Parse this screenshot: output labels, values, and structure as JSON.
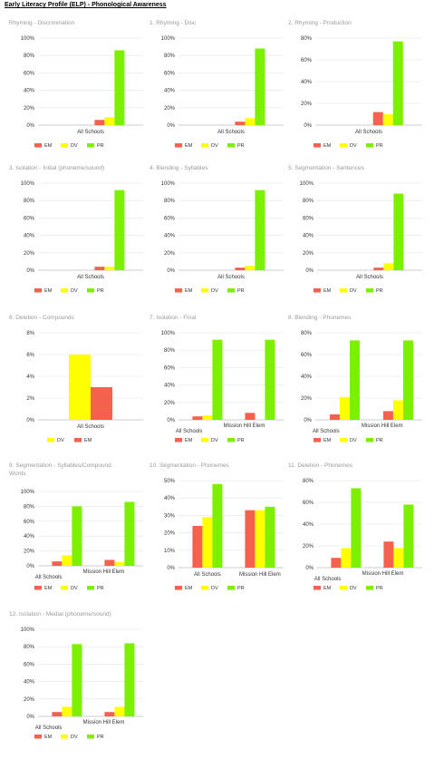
{
  "page": {
    "title": "Early Literacy Profile (ELP) - Phonological Awareness"
  },
  "colors": {
    "EM": "#f4614d",
    "DV": "#ffff00",
    "PR": "#7cf000",
    "axis": "#999999",
    "grid": "#e3e3e3",
    "title": "#9a9a9a",
    "label": "#333333"
  },
  "legend": [
    "EM",
    "DV",
    "PR"
  ],
  "chart_data": [
    {
      "type": "bar",
      "title": "Rhyming - Discrimination",
      "categories": [
        "All Schools"
      ],
      "ylim": [
        0,
        100
      ],
      "ticks": [
        0,
        20,
        40,
        60,
        80,
        100
      ],
      "tick_suffix": "%",
      "series": [
        {
          "name": "EM",
          "values": [
            6
          ]
        },
        {
          "name": "DV",
          "values": [
            9
          ]
        },
        {
          "name": "PR",
          "values": [
            86
          ]
        }
      ],
      "legend_order": [
        "EM",
        "DV",
        "PR"
      ]
    },
    {
      "type": "bar",
      "title": "1. Rhyming - Disc",
      "categories": [
        "All Schools"
      ],
      "ylim": [
        0,
        100
      ],
      "ticks": [
        0,
        20,
        40,
        60,
        80,
        100
      ],
      "tick_suffix": "%",
      "series": [
        {
          "name": "EM",
          "values": [
            4
          ]
        },
        {
          "name": "DV",
          "values": [
            8
          ]
        },
        {
          "name": "PR",
          "values": [
            88
          ]
        }
      ],
      "legend_order": [
        "EM",
        "DV",
        "PR"
      ]
    },
    {
      "type": "bar",
      "title": "2. Rhyming - Production",
      "categories": [
        "All Schools"
      ],
      "ylim": [
        0,
        80
      ],
      "ticks": [
        0,
        20,
        40,
        60,
        80
      ],
      "tick_suffix": "%",
      "series": [
        {
          "name": "EM",
          "values": [
            12
          ]
        },
        {
          "name": "DV",
          "values": [
            10
          ]
        },
        {
          "name": "PR",
          "values": [
            77
          ]
        }
      ],
      "legend_order": [
        "EM",
        "DV",
        "PR"
      ]
    },
    {
      "type": "bar",
      "title": "3. Isolation - Initial (phoneme/sound)",
      "categories": [
        "All Schools"
      ],
      "ylim": [
        0,
        100
      ],
      "ticks": [
        0,
        20,
        40,
        60,
        80,
        100
      ],
      "tick_suffix": "%",
      "series": [
        {
          "name": "EM",
          "values": [
            4
          ]
        },
        {
          "name": "DV",
          "values": [
            4
          ]
        },
        {
          "name": "PR",
          "values": [
            92
          ]
        }
      ],
      "legend_order": [
        "EM",
        "DV",
        "PR"
      ]
    },
    {
      "type": "bar",
      "title": "4. Blending - Syllables",
      "categories": [
        "All Schools"
      ],
      "ylim": [
        0,
        100
      ],
      "ticks": [
        0,
        20,
        40,
        60,
        80,
        100
      ],
      "tick_suffix": "%",
      "series": [
        {
          "name": "EM",
          "values": [
            3
          ]
        },
        {
          "name": "DV",
          "values": [
            5
          ]
        },
        {
          "name": "PR",
          "values": [
            92
          ]
        }
      ],
      "legend_order": [
        "EM",
        "DV",
        "PR"
      ]
    },
    {
      "type": "bar",
      "title": "5. Segmentation - Sentences",
      "categories": [
        "All Schools"
      ],
      "ylim": [
        0,
        100
      ],
      "ticks": [
        0,
        20,
        40,
        60,
        80,
        100
      ],
      "tick_suffix": "%",
      "series": [
        {
          "name": "EM",
          "values": [
            3
          ]
        },
        {
          "name": "DV",
          "values": [
            8
          ]
        },
        {
          "name": "PR",
          "values": [
            88
          ]
        }
      ],
      "legend_order": [
        "EM",
        "DV",
        "PR"
      ]
    },
    {
      "type": "bar",
      "title": "6. Deletion - Compounds",
      "categories": [
        "All Schools"
      ],
      "ylim": [
        0,
        8
      ],
      "ticks": [
        0,
        2,
        4,
        6,
        8
      ],
      "tick_suffix": "%",
      "series": [
        {
          "name": "DV",
          "values": [
            6
          ]
        },
        {
          "name": "EM",
          "values": [
            3
          ]
        }
      ],
      "legend_order": [
        "DV",
        "EM"
      ]
    },
    {
      "type": "bar",
      "title": "7. Isolation - Final",
      "categories": [
        "All Schools",
        "Mission Hill Elem"
      ],
      "ylim": [
        0,
        100
      ],
      "ticks": [
        0,
        20,
        40,
        60,
        80,
        100
      ],
      "tick_suffix": "%",
      "series": [
        {
          "name": "EM",
          "values": [
            4,
            8
          ]
        },
        {
          "name": "DV",
          "values": [
            5,
            0
          ]
        },
        {
          "name": "PR",
          "values": [
            92,
            92
          ]
        }
      ],
      "legend_order": [
        "EM",
        "DV",
        "PR"
      ]
    },
    {
      "type": "bar",
      "title": "8. Blending - Phonemes",
      "categories": [
        "All Schools",
        "Mission Hill Elem"
      ],
      "ylim": [
        0,
        80
      ],
      "ticks": [
        0,
        20,
        40,
        60,
        80
      ],
      "tick_suffix": "%",
      "series": [
        {
          "name": "EM",
          "values": [
            5,
            8
          ]
        },
        {
          "name": "DV",
          "values": [
            21,
            18
          ]
        },
        {
          "name": "PR",
          "values": [
            73,
            73
          ]
        }
      ],
      "legend_order": [
        "EM",
        "DV",
        "PR"
      ]
    },
    {
      "type": "bar",
      "title": "9. Segmentation - Syllables/Compound Words",
      "categories": [
        "All Schools",
        "Mission Hill Elem"
      ],
      "ylim": [
        0,
        100
      ],
      "ticks": [
        0,
        20,
        40,
        60,
        80,
        100
      ],
      "tick_suffix": "%",
      "series": [
        {
          "name": "EM",
          "values": [
            6,
            8
          ]
        },
        {
          "name": "DV",
          "values": [
            14,
            5
          ]
        },
        {
          "name": "PR",
          "values": [
            80,
            86
          ]
        }
      ],
      "legend_order": [
        "EM",
        "DV",
        "PR"
      ]
    },
    {
      "type": "bar",
      "title": "10. Segmentation - Phonemes",
      "categories": [
        "All Schools",
        "Mission Hill Elem"
      ],
      "ylim": [
        0,
        50
      ],
      "ticks": [
        0,
        10,
        20,
        30,
        40,
        50
      ],
      "tick_suffix": "%",
      "series": [
        {
          "name": "EM",
          "values": [
            24,
            33
          ]
        },
        {
          "name": "DV",
          "values": [
            29,
            33
          ]
        },
        {
          "name": "PR",
          "values": [
            48,
            35
          ]
        }
      ],
      "legend_order": [
        "EM",
        "DV",
        "PR"
      ]
    },
    {
      "type": "bar",
      "title": "11. Deletion - Phonemes",
      "categories": [
        "All Schools",
        "Mission Hill Elem"
      ],
      "ylim": [
        0,
        80
      ],
      "ticks": [
        0,
        20,
        40,
        60,
        80
      ],
      "tick_suffix": "%",
      "series": [
        {
          "name": "EM",
          "values": [
            9,
            24
          ]
        },
        {
          "name": "DV",
          "values": [
            18,
            18
          ]
        },
        {
          "name": "PR",
          "values": [
            73,
            58
          ]
        }
      ],
      "legend_order": [
        "EM",
        "DV",
        "PR"
      ]
    },
    {
      "type": "bar",
      "title": "12. Isolation - Medial (phoneme/sound)",
      "categories": [
        "All Schools",
        "Mission Hill Elem"
      ],
      "ylim": [
        0,
        100
      ],
      "ticks": [
        0,
        20,
        40,
        60,
        80,
        100
      ],
      "tick_suffix": "%",
      "series": [
        {
          "name": "EM",
          "values": [
            5,
            5
          ]
        },
        {
          "name": "DV",
          "values": [
            11,
            11
          ]
        },
        {
          "name": "PR",
          "values": [
            83,
            84
          ]
        }
      ],
      "legend_order": [
        "EM",
        "DV",
        "PR"
      ]
    }
  ]
}
